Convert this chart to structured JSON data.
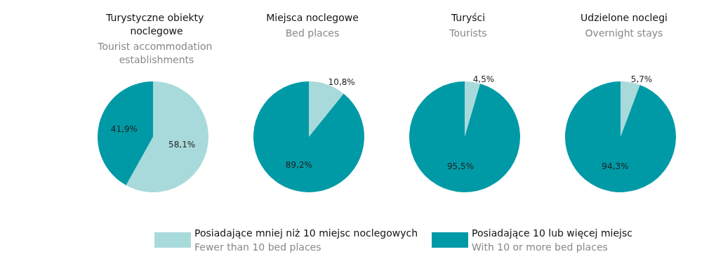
{
  "chart_data": [
    {
      "type": "pie",
      "title": "Turystyczne obiekty noclegowe",
      "subtitle": "Tourist accommodation establishments",
      "categories": [
        "Posiadające mniej niż 10 miejsc noclegowych\nFewer than 10 bed places",
        "Posiadające 10 lub więcej miejsc\nWith 10 or more bed places"
      ],
      "values": [
        58.1,
        41.9
      ],
      "colors": [
        "#a9dadb",
        "#009aa6"
      ],
      "value_labels": [
        "58,1%",
        "41,9%"
      ],
      "legend": "bottom"
    },
    {
      "type": "pie",
      "title": "Miejsca noclegowe",
      "subtitle": "Bed places",
      "categories": [
        null,
        null
      ],
      "values": [
        10.8,
        89.2
      ],
      "colors": [
        "#a9dadb",
        "#009aa6"
      ],
      "value_labels": [
        "10,8%",
        "89,2%"
      ]
    },
    {
      "type": "pie",
      "title": "Turyści",
      "subtitle": "Tourists",
      "categories": [
        null,
        null
      ],
      "values": [
        4.5,
        95.5
      ],
      "colors": [
        "#a9dadb",
        "#009aa6"
      ],
      "value_labels": [
        "4,5%",
        "95,5%"
      ]
    },
    {
      "type": "pie",
      "title": "Udzielone noclegi",
      "subtitle": "Overnight stays",
      "categories": [
        null,
        null
      ],
      "values": [
        5.7,
        94.3
      ],
      "colors": [
        "#a9dadb",
        "#009aa6"
      ],
      "value_labels": [
        "5,7%",
        "94,3%"
      ]
    }
  ]
}
